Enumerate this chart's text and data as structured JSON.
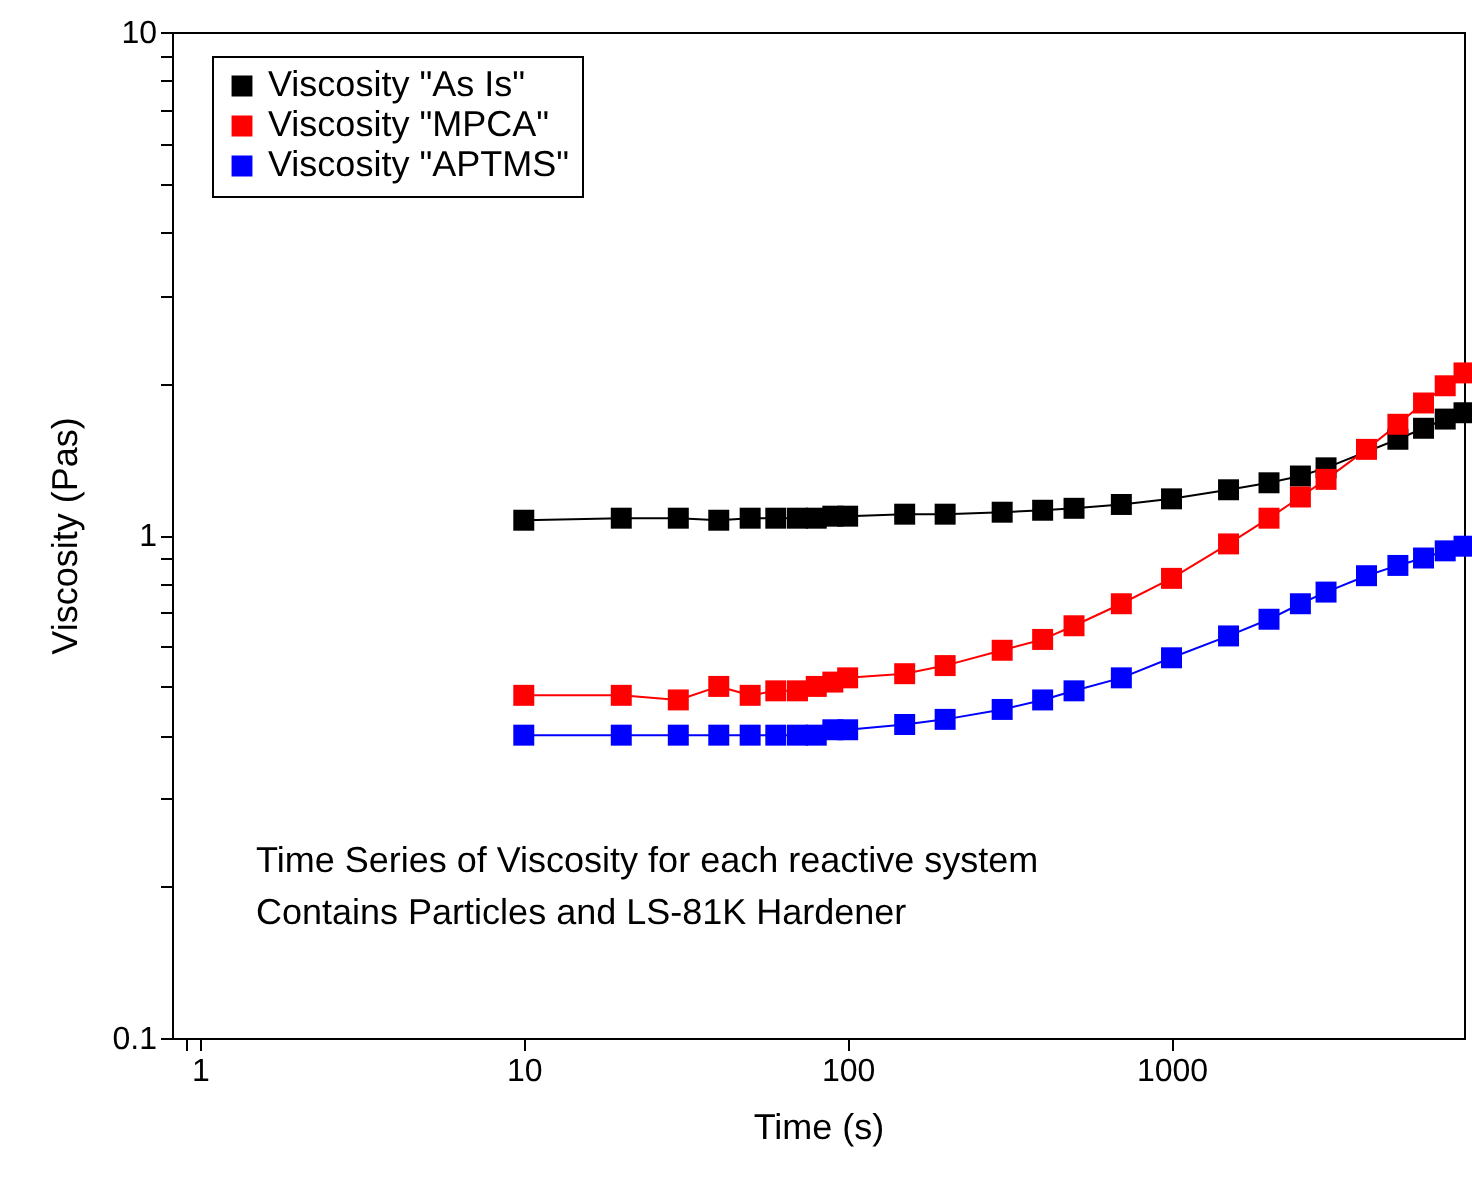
{
  "chart_data": {
    "type": "line",
    "xlabel": "Time (s)",
    "ylabel": "Viscosity (Pas)",
    "log": "xy",
    "marker": "square",
    "line_style": "solid",
    "grid": false,
    "legend": "top left",
    "annotations": [
      "Time Series of Viscosity for each reactive system",
      "Contains Particles and LS-81K Hardener"
    ],
    "xlim": [
      0.82,
      8000
    ],
    "ylim": [
      0.1,
      10
    ],
    "xticks": [
      {
        "value": 0.9,
        "label": null
      },
      1,
      10,
      100,
      1000
    ],
    "yticks": [
      0.1,
      {
        "value": 0.2,
        "label": null
      },
      {
        "value": 0.3,
        "label": null
      },
      {
        "value": 0.4,
        "label": null
      },
      {
        "value": 0.5,
        "label": null
      },
      {
        "value": 0.6,
        "label": null
      },
      {
        "value": 0.7,
        "label": null
      },
      {
        "value": 0.8,
        "label": null
      },
      {
        "value": 0.9,
        "label": null
      },
      1,
      {
        "value": 2,
        "label": null
      },
      {
        "value": 3,
        "label": null
      },
      {
        "value": 4,
        "label": null
      },
      {
        "value": 5,
        "label": null
      },
      {
        "value": 6,
        "label": null
      },
      {
        "value": 7,
        "label": null
      },
      {
        "value": 8,
        "label": null
      },
      {
        "value": 9,
        "label": null
      },
      10
    ],
    "x": [
      10,
      20,
      30,
      40,
      50,
      60,
      70,
      80,
      90,
      100,
      150,
      200,
      300,
      400,
      500,
      700,
      1000,
      1500,
      2000,
      2500,
      3000,
      4000,
      5000,
      6000,
      7000,
      8000
    ],
    "series": [
      {
        "name": "Viscosity \"As Is\"",
        "color": "#000000",
        "values": [
          1.07,
          1.08,
          1.08,
          1.07,
          1.08,
          1.08,
          1.08,
          1.08,
          1.09,
          1.09,
          1.1,
          1.1,
          1.11,
          1.12,
          1.13,
          1.15,
          1.18,
          1.23,
          1.27,
          1.31,
          1.36,
          null,
          1.55,
          1.63,
          1.7,
          1.75
        ]
      },
      {
        "name": "Viscosity \"MPCA\"",
        "color": "#ff0000",
        "values": [
          0.48,
          0.48,
          0.47,
          0.5,
          0.48,
          0.49,
          0.49,
          0.5,
          0.51,
          0.52,
          0.53,
          0.55,
          0.59,
          0.62,
          0.66,
          0.73,
          0.82,
          0.96,
          1.08,
          1.19,
          1.29,
          1.48,
          1.66,
          1.83,
          1.98,
          2.1
        ]
      },
      {
        "name": "Viscosity \"APTMS\"",
        "color": "#0000ff",
        "values": [
          0.4,
          0.4,
          0.4,
          0.4,
          0.4,
          0.4,
          0.4,
          0.4,
          0.41,
          0.41,
          0.42,
          0.43,
          0.45,
          0.47,
          0.49,
          0.52,
          0.57,
          0.63,
          0.68,
          0.73,
          0.77,
          0.83,
          0.87,
          0.9,
          0.93,
          0.95
        ]
      }
    ]
  }
}
